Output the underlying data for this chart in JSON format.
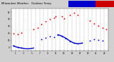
{
  "bg_color": "#d0d0d0",
  "plot_bg": "#ffffff",
  "temp_color": "#cc0000",
  "dew_color": "#0000cc",
  "title_bar_blue": "#0000cc",
  "title_bar_red": "#cc0000",
  "grid_color": "#999999",
  "ylim": [
    -5,
    55
  ],
  "xlim": [
    0,
    24
  ],
  "ytick_vals": [
    0,
    10,
    20,
    30,
    40,
    50
  ],
  "ytick_labels": [
    "0",
    "10",
    "20",
    "30",
    "40",
    "50"
  ],
  "temp_x": [
    0.5,
    1.5,
    2.5,
    5.5,
    6.5,
    7.5,
    8.5,
    9.5,
    10.5,
    11.0,
    12.5,
    13.0,
    14.5,
    15.5,
    16.5,
    19.5,
    20.5,
    21.5,
    22.5,
    23.5
  ],
  "temp_y": [
    20,
    19,
    21,
    26,
    28,
    33,
    37,
    40,
    42,
    44,
    44,
    41,
    46,
    49,
    46,
    38,
    34,
    31,
    28,
    26
  ],
  "dew_x": [
    0.5,
    1.5,
    2.5,
    7.5,
    8.5,
    9.5,
    10.5,
    11.5,
    12.5,
    13.5,
    14.5,
    15.5,
    16.5,
    17.5,
    19.5,
    20.5,
    21.5,
    22.5
  ],
  "dew_y": [
    2,
    0,
    -1,
    12,
    14,
    16,
    15,
    18,
    16,
    13,
    9,
    6,
    5,
    6,
    10,
    12,
    11,
    10
  ],
  "dew_line_segments": [
    {
      "x": [
        0.5,
        1.5,
        2.5,
        3.5,
        4.5,
        5.5
      ],
      "y": [
        2,
        0,
        -1,
        -2,
        -2,
        -1
      ]
    },
    {
      "x": [
        11.5,
        12.5,
        13.5,
        14.5,
        15.5,
        16.5,
        17.5
      ],
      "y": [
        18,
        16,
        13,
        9,
        6,
        5,
        6
      ]
    }
  ],
  "title_text": "Milwaukee Weather   Outdoor Temp",
  "title_fontsize": 2.8
}
